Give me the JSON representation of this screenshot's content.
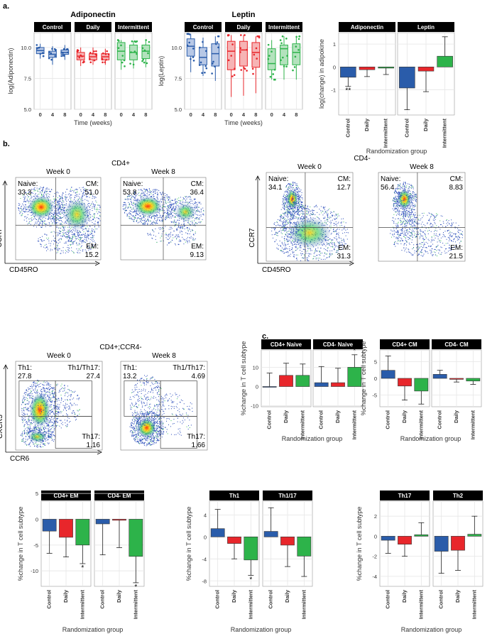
{
  "panel_labels": {
    "a": "a.",
    "b": "b.",
    "c": "c."
  },
  "colors": {
    "control": "#2a5caa",
    "daily": "#e8262b",
    "intermittent": "#2db34a",
    "strip": "#000000",
    "grid": "#e6e6e6"
  },
  "flow": {
    "cd4pos": {
      "title": "CD4+",
      "xlabel": "CD45RO",
      "ylabel": "CCR7",
      "plots": [
        {
          "week": "Week 0",
          "tl_name": "Naive:",
          "tl_val": "33.3",
          "tr_name": "CM:",
          "tr_val": "51.0",
          "br_name": "EM:",
          "br_val": "15.2"
        },
        {
          "week": "Week 8",
          "tl_name": "Naive:",
          "tl_val": "53.8",
          "tr_name": "CM:",
          "tr_val": "36.4",
          "br_name": "EM:",
          "br_val": "9.13"
        }
      ]
    },
    "cd4neg": {
      "title": "CD4-",
      "xlabel": "CD45RO",
      "ylabel": "CCR7",
      "plots": [
        {
          "week": "Week 0",
          "tl_name": "Naive:",
          "tl_val": "34.1",
          "tr_name": "CM:",
          "tr_val": "12.7",
          "br_name": "EM:",
          "br_val": "31.3"
        },
        {
          "week": "Week 8",
          "tl_name": "Naive:",
          "tl_val": "56.4",
          "tr_name": "CM:",
          "tr_val": "8.83",
          "br_name": "EM:",
          "br_val": "21.5"
        }
      ]
    },
    "ccr4neg": {
      "title": "CD4+;CCR4-",
      "xlabel": "CCR6",
      "ylabel": "CXCR3",
      "plots": [
        {
          "week": "Week 0",
          "tl_name": "Th1:",
          "tl_val": "27.8",
          "tr_name": "Th1/Th17:",
          "tr_val": "27.4",
          "br_name": "Th17:",
          "br_val": "1.16"
        },
        {
          "week": "Week 8",
          "tl_name": "Th1:",
          "tl_val": "13.2",
          "tr_name": "Th1/Th17:",
          "tr_val": "4.69",
          "br_name": "Th17:",
          "br_val": "1.66"
        }
      ]
    }
  },
  "chart_data": [
    {
      "type": "box",
      "title": "Adiponectin",
      "ylabel": "log(Adiponectin)",
      "xlabel": "Time (weeks)",
      "ylim": [
        5.0,
        11.2
      ],
      "yticks": [
        "5.0",
        "7.5",
        "10.0"
      ],
      "facets": [
        "Control",
        "Daily",
        "Intermittent"
      ],
      "categories": [
        "0",
        "4",
        "8"
      ],
      "boxes": [
        [
          {
            "q1": 9.5,
            "med": 9.75,
            "q3": 10.0,
            "lo": 9.1,
            "hi": 10.3
          },
          {
            "q1": 9.2,
            "med": 9.45,
            "q3": 9.7,
            "lo": 8.6,
            "hi": 10.1
          },
          {
            "q1": 9.45,
            "med": 9.6,
            "q3": 9.8,
            "lo": 9.0,
            "hi": 10.2
          }
        ],
        [
          {
            "q1": 9.0,
            "med": 9.3,
            "q3": 9.6,
            "lo": 8.5,
            "hi": 10.0
          },
          {
            "q1": 9.0,
            "med": 9.25,
            "q3": 9.5,
            "lo": 8.6,
            "hi": 10.0
          },
          {
            "q1": 9.0,
            "med": 9.25,
            "q3": 9.5,
            "lo": 8.6,
            "hi": 9.9
          }
        ],
        [
          {
            "q1": 9.0,
            "med": 9.7,
            "q3": 10.4,
            "lo": 8.2,
            "hi": 10.6
          },
          {
            "q1": 9.0,
            "med": 9.6,
            "q3": 10.2,
            "lo": 8.3,
            "hi": 10.5
          },
          {
            "q1": 9.1,
            "med": 9.7,
            "q3": 10.2,
            "lo": 8.4,
            "hi": 10.6
          }
        ]
      ]
    },
    {
      "type": "box",
      "title": "Leptin",
      "ylabel": "log(Leptin)",
      "xlabel": "Time (weeks)",
      "ylim": [
        5.0,
        11.2
      ],
      "yticks": [
        "5.0",
        "7.5",
        "10.0"
      ],
      "facets": [
        "Control",
        "Daily",
        "Intermittent"
      ],
      "categories": [
        "0",
        "4",
        "8"
      ],
      "boxes": [
        [
          {
            "q1": 9.3,
            "med": 10.1,
            "q3": 10.7,
            "lo": 8.0,
            "hi": 11.1
          },
          {
            "q1": 8.6,
            "med": 9.2,
            "q3": 10.0,
            "lo": 7.7,
            "hi": 10.8
          },
          {
            "q1": 8.5,
            "med": 9.5,
            "q3": 10.3,
            "lo": 7.3,
            "hi": 10.9
          }
        ],
        [
          {
            "q1": 8.2,
            "med": 9.7,
            "q3": 10.5,
            "lo": 6.0,
            "hi": 11.0
          },
          {
            "q1": 8.5,
            "med": 9.8,
            "q3": 10.5,
            "lo": 6.1,
            "hi": 11.0
          },
          {
            "q1": 8.4,
            "med": 9.6,
            "q3": 10.4,
            "lo": 6.3,
            "hi": 10.9
          }
        ],
        [
          {
            "q1": 8.2,
            "med": 8.7,
            "q3": 9.9,
            "lo": 7.4,
            "hi": 10.6
          },
          {
            "q1": 8.6,
            "med": 9.9,
            "q3": 10.2,
            "lo": 7.4,
            "hi": 10.9
          },
          {
            "q1": 8.6,
            "med": 9.6,
            "q3": 10.3,
            "lo": 7.4,
            "hi": 10.9
          }
        ]
      ]
    },
    {
      "type": "bar",
      "ylabel": "log(change) in adipokine",
      "xlabel": "Randomization group",
      "ylim": [
        -2.1,
        1.5
      ],
      "yticks": [
        -1,
        0,
        1
      ],
      "facets": [
        "Adiponectin",
        "Leptin"
      ],
      "categories": [
        "Control",
        "Daily",
        "Intermittent"
      ],
      "values": [
        [
          -0.45,
          -0.12,
          -0.05
        ],
        [
          -0.92,
          -0.18,
          0.47
        ]
      ],
      "errors": [
        [
          0.4,
          0.3,
          0.28
        ],
        [
          0.95,
          0.9,
          0.85
        ]
      ],
      "annotations": [
        {
          "facet": 0,
          "index": 0,
          "text": "**"
        }
      ]
    },
    {
      "type": "bar",
      "ylabel": "%change in T cell subtype",
      "xlabel": "Randomization group",
      "ylim": [
        -10.5,
        19
      ],
      "yticks": [
        -10,
        0,
        10
      ],
      "facets": [
        "CD4+ Naive",
        "CD4- Naive"
      ],
      "categories": [
        "Control",
        "Daily",
        "Intermittent"
      ],
      "values": [
        [
          0.0,
          5.8,
          5.8
        ],
        [
          2.0,
          2.0,
          10.0
        ]
      ],
      "errors": [
        [
          7.0,
          6.3,
          5.9
        ],
        [
          8.4,
          7.5,
          6.5
        ]
      ],
      "annotations": [
        {
          "facet": 1,
          "index": 2,
          "text": "*"
        }
      ]
    },
    {
      "type": "bar",
      "ylabel": "%change in T cell subtype",
      "xlabel": "Randomization group",
      "ylim": [
        -8.5,
        8.5
      ],
      "yticks": [
        -5,
        0,
        5
      ],
      "facets": [
        "CD4+ CM",
        "CD4- CM"
      ],
      "categories": [
        "Control",
        "Daily",
        "Intermittent"
      ],
      "values": [
        [
          2.4,
          -2.3,
          -3.8
        ],
        [
          1.2,
          -0.3,
          -0.8
        ]
      ],
      "errors": [
        [
          4.3,
          4.2,
          3.9
        ],
        [
          1.2,
          0.8,
          1.0
        ]
      ],
      "annotations": []
    },
    {
      "type": "bar",
      "ylabel": "%change in T cell subtype",
      "xlabel": "Randomization group",
      "ylim": [
        -13,
        3.5
      ],
      "yticks": [
        -10,
        -5,
        0,
        5
      ],
      "facets": [
        "CD4+ EM",
        "CD4- EM"
      ],
      "categories": [
        "Control",
        "Daily",
        "Intermittent"
      ],
      "values": [
        [
          -2.3,
          -3.5,
          -5.0
        ],
        [
          -0.9,
          -0.2,
          -7.2
        ]
      ],
      "errors": [
        [
          4.3,
          3.8,
          3.6
        ],
        [
          6.0,
          5.3,
          5.1
        ]
      ],
      "annotations": [
        {
          "facet": 0,
          "index": 2,
          "text": "*"
        },
        {
          "facet": 1,
          "index": 2,
          "text": "*"
        }
      ]
    },
    {
      "type": "bar",
      "ylabel": "%change in T cell subtype",
      "xlabel": "Randomization group",
      "ylim": [
        -9,
        6.5
      ],
      "yticks": [
        -8,
        -4,
        0,
        4
      ],
      "facets": [
        "Th1",
        "Th1/17"
      ],
      "categories": [
        "Control",
        "Daily",
        "Intermittent"
      ],
      "values": [
        [
          1.5,
          -1.2,
          -4.2
        ],
        [
          1.0,
          -1.5,
          -3.5
        ]
      ],
      "errors": [
        [
          3.5,
          2.8,
          2.8
        ],
        [
          4.3,
          3.9,
          3.7
        ]
      ],
      "annotations": [
        {
          "facet": 0,
          "index": 2,
          "text": "*"
        }
      ]
    },
    {
      "type": "bar",
      "ylabel": "%change in T cell subtype",
      "xlabel": "Randomization group",
      "ylim": [
        -5,
        3.5
      ],
      "yticks": [
        -4,
        -2,
        0,
        2
      ],
      "facets": [
        "Th17",
        "Th2"
      ],
      "categories": [
        "Control",
        "Daily",
        "Intermittent"
      ],
      "values": [
        [
          -0.4,
          -0.8,
          0.15
        ],
        [
          -1.5,
          -1.4,
          0.2
        ]
      ],
      "errors": [
        [
          1.3,
          1.2,
          1.2
        ],
        [
          2.2,
          2.0,
          1.8
        ]
      ],
      "annotations": []
    }
  ]
}
